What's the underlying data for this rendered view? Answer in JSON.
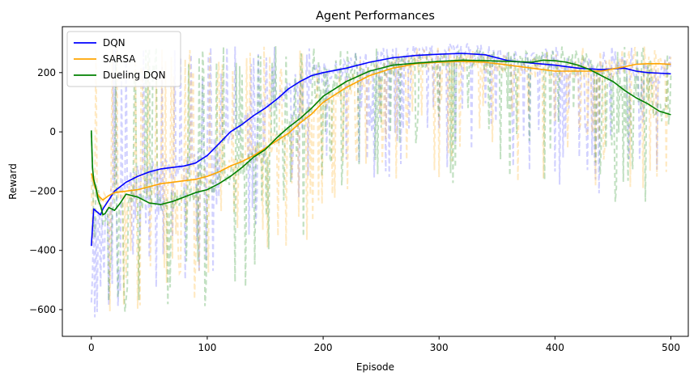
{
  "chart_data": {
    "type": "line",
    "title": "Agent Performances",
    "xlabel": "Episode",
    "ylabel": "Reward",
    "xlim": [
      -25,
      515
    ],
    "ylim": [
      -690,
      355
    ],
    "xticks": [
      0,
      100,
      200,
      300,
      400,
      500
    ],
    "yticks": [
      -600,
      -400,
      -200,
      0,
      200
    ],
    "grid": false,
    "legend_position": "top-left",
    "series": [
      {
        "name": "DQN",
        "color": "#0000ff",
        "raw_color": "#6666ff",
        "x": [
          0,
          2,
          5,
          8,
          10,
          15,
          20,
          30,
          40,
          50,
          60,
          70,
          80,
          90,
          100,
          110,
          120,
          130,
          140,
          150,
          160,
          170,
          180,
          190,
          200,
          220,
          240,
          260,
          280,
          300,
          320,
          340,
          350,
          360,
          380,
          400,
          420,
          440,
          460,
          470,
          480,
          490,
          500
        ],
        "y": [
          -385,
          -260,
          -270,
          -280,
          -260,
          -230,
          -200,
          -170,
          -150,
          -135,
          -125,
          -120,
          -115,
          -105,
          -80,
          -40,
          0,
          25,
          55,
          80,
          110,
          145,
          170,
          190,
          200,
          215,
          235,
          250,
          258,
          262,
          265,
          260,
          250,
          240,
          232,
          225,
          215,
          210,
          215,
          205,
          200,
          198,
          196
        ]
      },
      {
        "name": "SARSA",
        "color": "#ffa500",
        "raw_color": "#ffb733",
        "x": [
          0,
          3,
          6,
          10,
          15,
          20,
          30,
          40,
          50,
          60,
          70,
          80,
          90,
          100,
          110,
          120,
          130,
          140,
          150,
          160,
          170,
          180,
          190,
          200,
          220,
          240,
          260,
          280,
          300,
          320,
          340,
          360,
          380,
          400,
          420,
          440,
          460,
          470,
          480,
          490,
          500
        ],
        "y": [
          -140,
          -185,
          -215,
          -230,
          -215,
          -205,
          -200,
          -195,
          -185,
          -175,
          -170,
          -165,
          -160,
          -150,
          -135,
          -115,
          -100,
          -80,
          -55,
          -30,
          -5,
          30,
          60,
          100,
          150,
          190,
          215,
          230,
          235,
          238,
          235,
          225,
          215,
          205,
          205,
          205,
          220,
          228,
          230,
          230,
          228
        ]
      },
      {
        "name": "Dueling DQN",
        "color": "#008000",
        "raw_color": "#339933",
        "x": [
          0,
          1,
          2,
          4,
          6,
          8,
          10,
          12,
          15,
          20,
          25,
          30,
          40,
          50,
          60,
          70,
          80,
          90,
          100,
          110,
          120,
          130,
          140,
          150,
          160,
          170,
          180,
          190,
          200,
          220,
          240,
          260,
          280,
          300,
          320,
          340,
          360,
          380,
          390,
          400,
          410,
          420,
          430,
          440,
          450,
          460,
          470,
          480,
          490,
          500
        ],
        "y": [
          5,
          -120,
          -160,
          -190,
          -230,
          -250,
          -280,
          -275,
          -255,
          -265,
          -240,
          -210,
          -220,
          -240,
          -245,
          -235,
          -220,
          -205,
          -195,
          -175,
          -150,
          -120,
          -85,
          -60,
          -20,
          15,
          45,
          80,
          120,
          170,
          205,
          225,
          232,
          238,
          242,
          240,
          238,
          235,
          242,
          240,
          235,
          225,
          210,
          190,
          170,
          140,
          115,
          95,
          70,
          58
        ]
      }
    ]
  }
}
